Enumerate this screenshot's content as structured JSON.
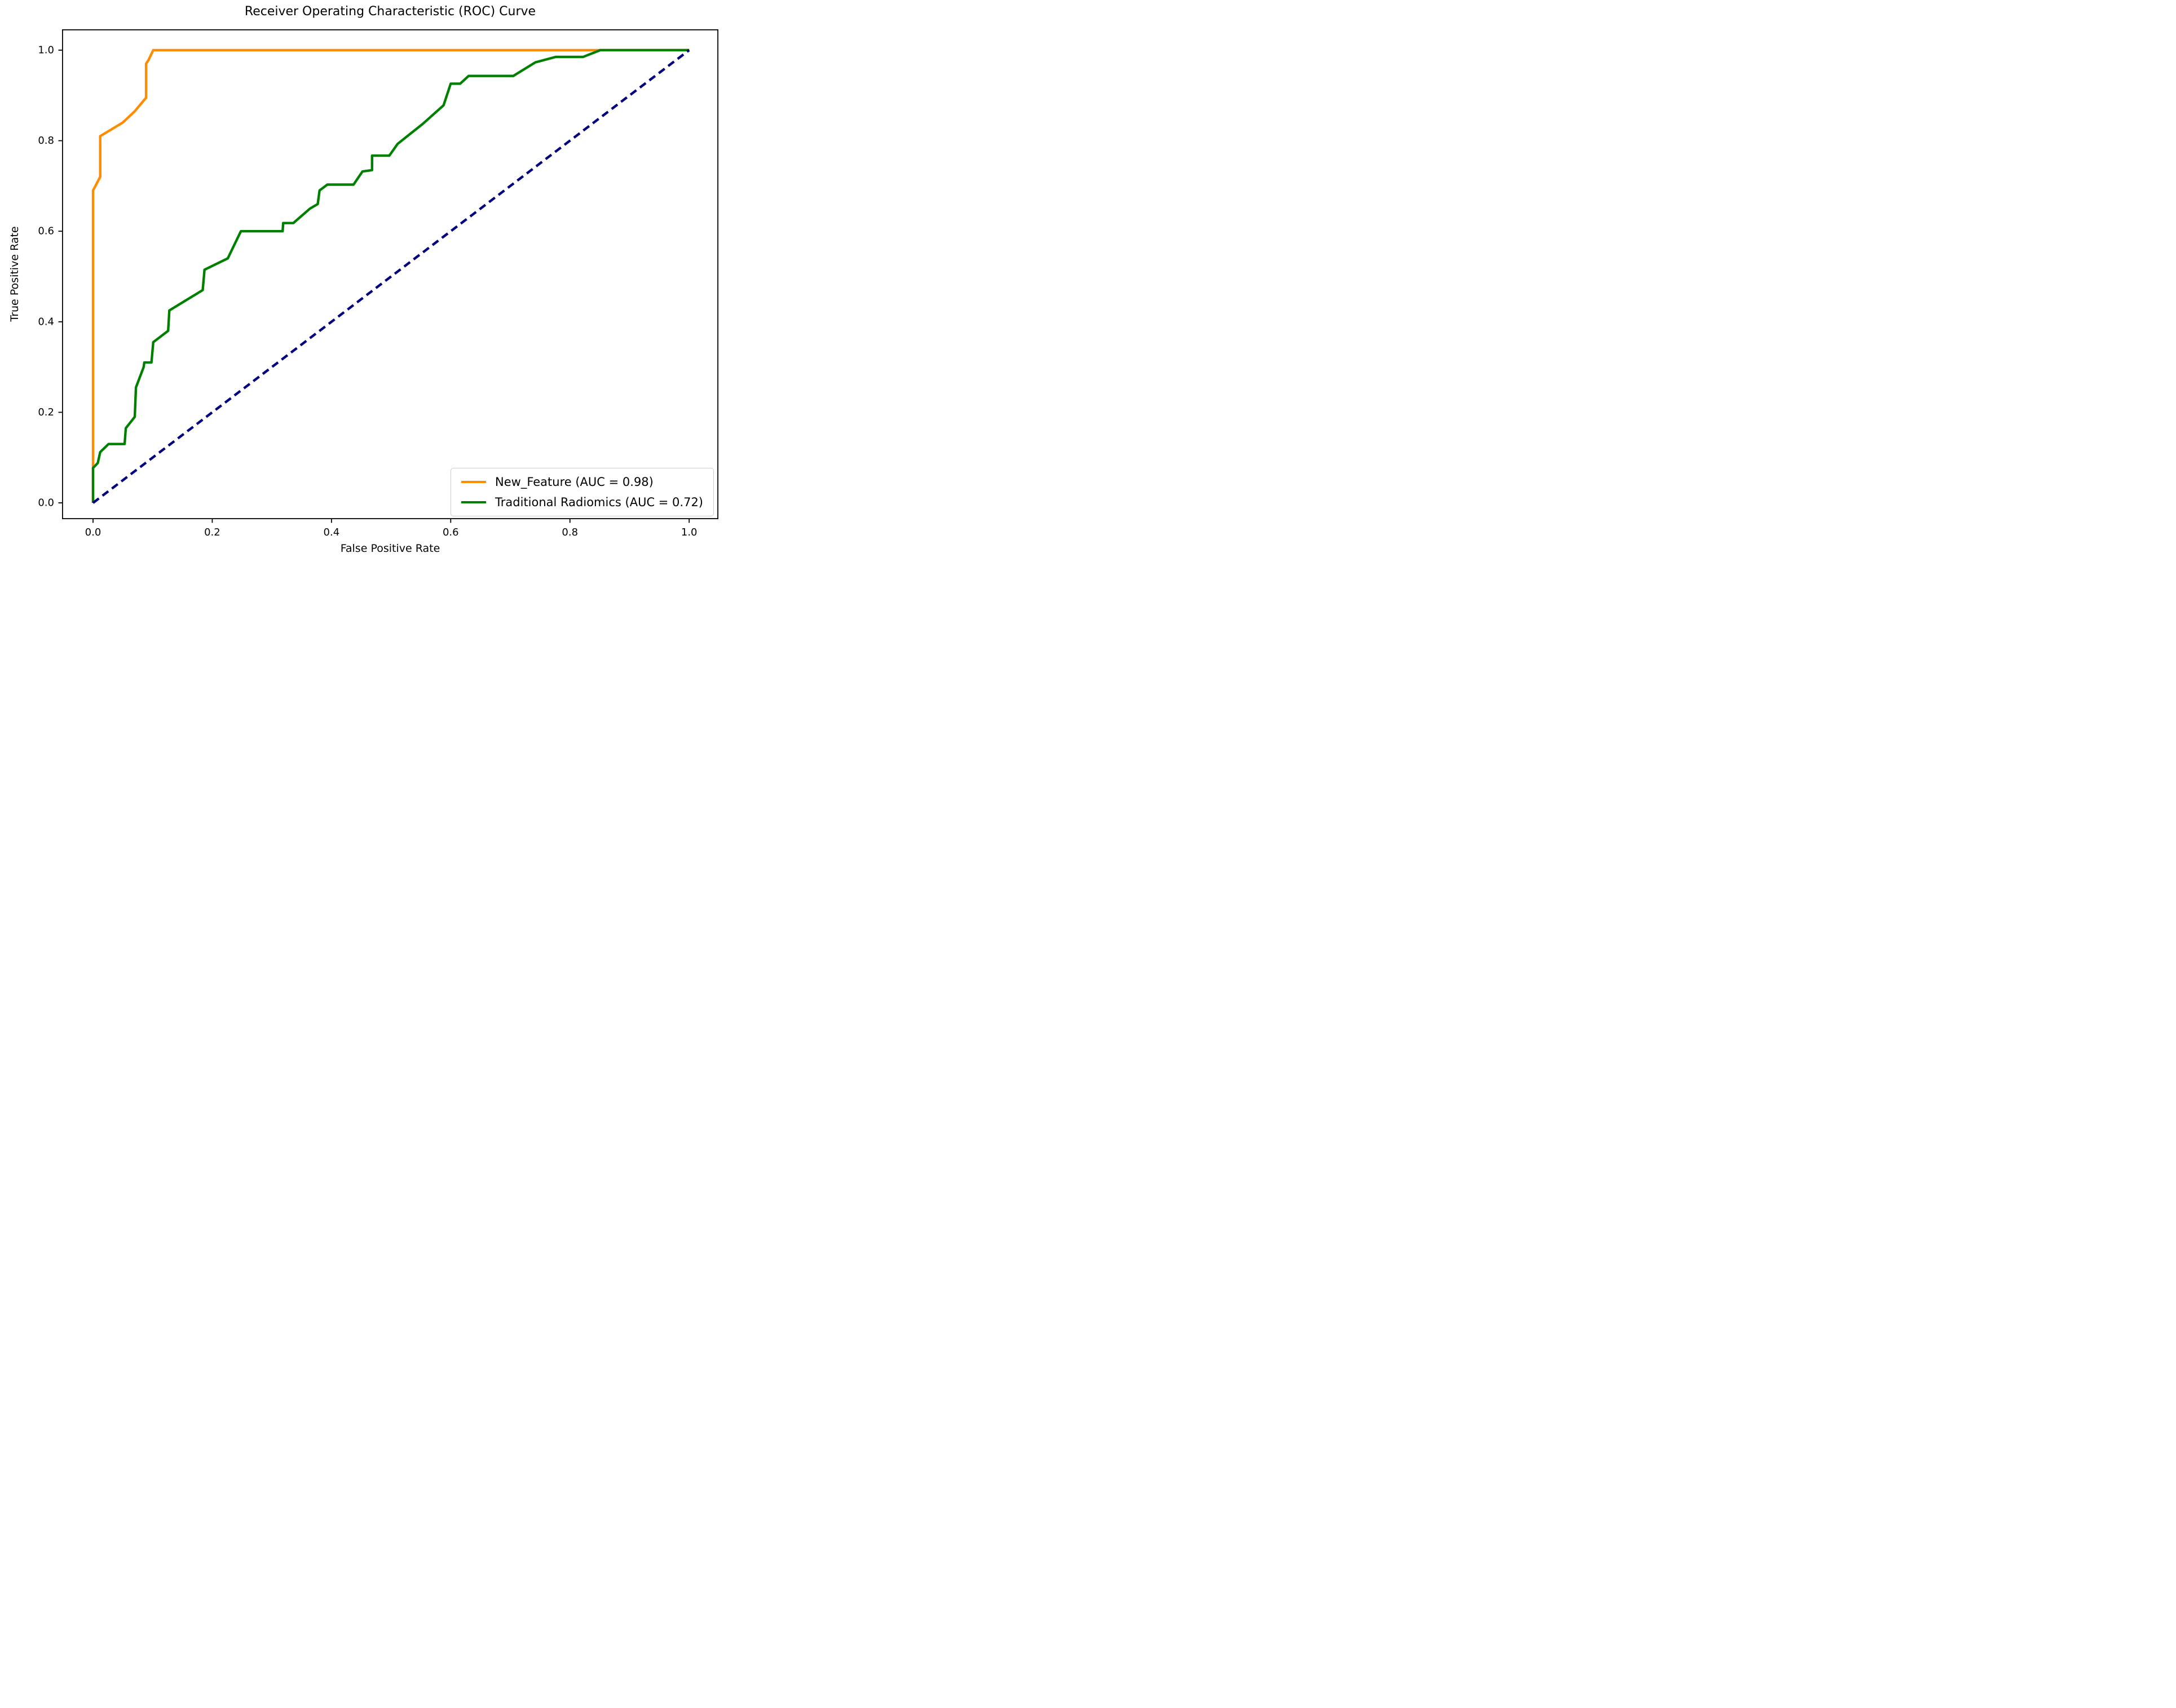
{
  "chart_data": {
    "type": "line",
    "title": "Receiver Operating Characteristic (ROC) Curve",
    "xlabel": "False Positive Rate",
    "ylabel": "True Positive Rate",
    "xlim": [
      -0.052,
      1.049
    ],
    "ylim": [
      -0.036,
      1.046
    ],
    "grid": false,
    "legend_position": "lower right",
    "x_ticks": {
      "values": [
        0.0,
        0.2,
        0.4,
        0.6,
        0.8,
        1.0
      ],
      "labels": [
        "0.0",
        "0.2",
        "0.4",
        "0.6",
        "0.8",
        "1.0"
      ]
    },
    "y_ticks": {
      "values": [
        0.0,
        0.2,
        0.4,
        0.6,
        0.8,
        1.0
      ],
      "labels": [
        "0.0",
        "0.2",
        "0.4",
        "0.6",
        "0.8",
        "1.0"
      ]
    },
    "series": [
      {
        "name": "New_Feature (AUC = 0.98)",
        "auc": 0.98,
        "color": "#ff8c00",
        "line_style": "solid",
        "points": [
          [
            0,
            0
          ],
          [
            0,
            0.69
          ],
          [
            0.012,
            0.72
          ],
          [
            0.012,
            0.81
          ],
          [
            0.05,
            0.84
          ],
          [
            0.07,
            0.865
          ],
          [
            0.089,
            0.895
          ],
          [
            0.089,
            0.97
          ],
          [
            0.093,
            0.978
          ],
          [
            0.101,
            1.0
          ],
          [
            1.0,
            1.0
          ]
        ]
      },
      {
        "name": "Traditional Radiomics (AUC = 0.72)",
        "auc": 0.72,
        "color": "#008000",
        "line_style": "solid",
        "points": [
          [
            0,
            0
          ],
          [
            0,
            0.077
          ],
          [
            0.008,
            0.088
          ],
          [
            0.012,
            0.112
          ],
          [
            0.026,
            0.13
          ],
          [
            0.053,
            0.13
          ],
          [
            0.055,
            0.165
          ],
          [
            0.07,
            0.19
          ],
          [
            0.072,
            0.255
          ],
          [
            0.085,
            0.3
          ],
          [
            0.086,
            0.31
          ],
          [
            0.098,
            0.31
          ],
          [
            0.101,
            0.355
          ],
          [
            0.126,
            0.38
          ],
          [
            0.128,
            0.425
          ],
          [
            0.184,
            0.47
          ],
          [
            0.187,
            0.515
          ],
          [
            0.226,
            0.54
          ],
          [
            0.248,
            0.6
          ],
          [
            0.318,
            0.6
          ],
          [
            0.319,
            0.618
          ],
          [
            0.336,
            0.618
          ],
          [
            0.364,
            0.65
          ],
          [
            0.377,
            0.66
          ],
          [
            0.38,
            0.69
          ],
          [
            0.393,
            0.703
          ],
          [
            0.437,
            0.703
          ],
          [
            0.452,
            0.732
          ],
          [
            0.468,
            0.735
          ],
          [
            0.468,
            0.767
          ],
          [
            0.497,
            0.767
          ],
          [
            0.511,
            0.793
          ],
          [
            0.553,
            0.837
          ],
          [
            0.588,
            0.878
          ],
          [
            0.6,
            0.926
          ],
          [
            0.616,
            0.926
          ],
          [
            0.63,
            0.943
          ],
          [
            0.705,
            0.943
          ],
          [
            0.742,
            0.973
          ],
          [
            0.776,
            0.985
          ],
          [
            0.822,
            0.985
          ],
          [
            0.851,
            1.0
          ],
          [
            1.0,
            1.0
          ]
        ]
      }
    ],
    "reference_line": {
      "points": [
        [
          0,
          0
        ],
        [
          1,
          1
        ]
      ],
      "color": "#000080",
      "line_style": "dashed"
    }
  }
}
